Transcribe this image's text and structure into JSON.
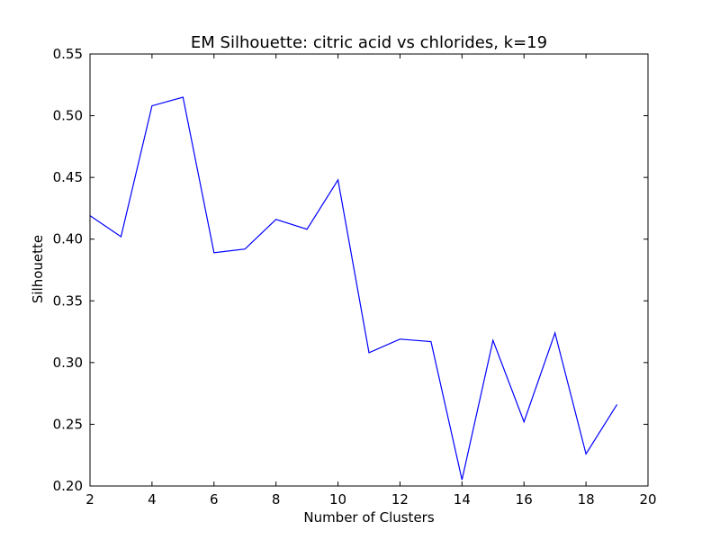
{
  "chart_data": {
    "type": "line",
    "title": "EM Silhouette: citric acid vs chlorides, k=19",
    "xlabel": "Number of Clusters",
    "ylabel": "Silhouette",
    "xlim": [
      2,
      20
    ],
    "ylim": [
      0.2,
      0.55
    ],
    "xticks": [
      2,
      4,
      6,
      8,
      10,
      12,
      14,
      16,
      18,
      20
    ],
    "yticks": [
      0.2,
      0.25,
      0.3,
      0.35,
      0.4,
      0.45,
      0.5,
      0.55
    ],
    "xtick_labels": [
      "2",
      "4",
      "6",
      "8",
      "10",
      "12",
      "14",
      "16",
      "18",
      "20"
    ],
    "ytick_labels": [
      "0.20",
      "0.25",
      "0.30",
      "0.35",
      "0.40",
      "0.45",
      "0.50",
      "0.55"
    ],
    "grid": false,
    "series": [
      {
        "color": "#0000ff",
        "x": [
          2,
          3,
          4,
          5,
          6,
          7,
          8,
          9,
          10,
          11,
          12,
          13,
          14,
          15,
          16,
          17,
          18,
          19
        ],
        "y": [
          0.419,
          0.402,
          0.508,
          0.515,
          0.389,
          0.392,
          0.416,
          0.408,
          0.448,
          0.308,
          0.319,
          0.317,
          0.205,
          0.318,
          0.252,
          0.324,
          0.226,
          0.266
        ]
      }
    ]
  }
}
